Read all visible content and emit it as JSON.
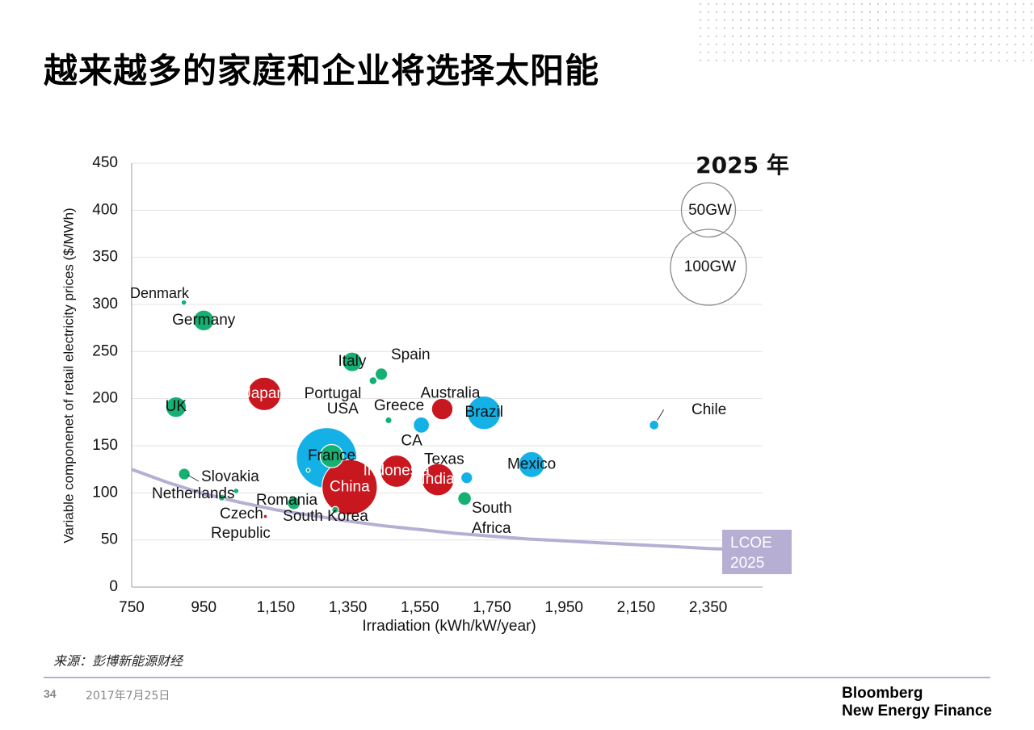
{
  "page": {
    "title": "越来越多的家庭和企业将选择太阳能",
    "source": "来源：彭博新能源财经",
    "page_number": "34",
    "date": "2017年7月25日",
    "brand_line1": "Bloomberg",
    "brand_line2": "New Energy Finance"
  },
  "colors": {
    "green": "#15b172",
    "red": "#c8171e",
    "blue": "#14b1e7",
    "lcoe": "#b7aed4"
  },
  "chart_data": {
    "type": "bubble",
    "title": "2025 年",
    "xlabel": "Irradiation (kWh/kW/year)",
    "ylabel": "Variable componenet of retail electricity prices ($/MWh)",
    "xlim": [
      750,
      2550
    ],
    "ylim": [
      0,
      450
    ],
    "xticks": [
      750,
      950,
      1150,
      1350,
      1550,
      1750,
      1950,
      2150,
      2350
    ],
    "xtick_labels": [
      "750",
      "950",
      "1,150",
      "1,350",
      "1,550",
      "1,750",
      "1,950",
      "2,150",
      "2,350"
    ],
    "yticks": [
      0,
      50,
      100,
      150,
      200,
      250,
      300,
      350,
      400,
      450
    ],
    "ytick_labels": [
      "0",
      "50",
      "100",
      "150",
      "200",
      "250",
      "300",
      "350",
      "400",
      "450"
    ],
    "grid": true,
    "size_legend": [
      {
        "label": "50GW",
        "gw": 50
      },
      {
        "label": "100GW",
        "gw": 100
      }
    ],
    "lcoe": {
      "label_line1": "LCOE",
      "label_line2": "2025",
      "x": [
        750,
        850,
        950,
        1050,
        1150,
        1250,
        1350,
        1450,
        1550,
        1650,
        1750,
        1850,
        1950,
        2050,
        2150,
        2250,
        2350,
        2450,
        2500
      ],
      "y": [
        125,
        111,
        99,
        90,
        82,
        76,
        70,
        65,
        61,
        57,
        54,
        51,
        49,
        47,
        45,
        43,
        41,
        39.5,
        38.5
      ]
    },
    "points": [
      {
        "name": "USA",
        "label": "USA",
        "x": 1291,
        "y": 137,
        "gw": 240,
        "color": "blue",
        "label_pos": "inside-top"
      },
      {
        "name": "Brazil",
        "label": "Brazil",
        "x": 1728,
        "y": 185,
        "gw": 74,
        "color": "blue",
        "label_pos": "inside"
      },
      {
        "name": "Mexico",
        "label": "Mexico",
        "x": 1860,
        "y": 130,
        "gw": 44,
        "color": "blue",
        "label_pos": "inside"
      },
      {
        "name": "CA",
        "label": "CA",
        "x": 1554,
        "y": 172,
        "gw": 17,
        "color": "blue",
        "label_pos": "below"
      },
      {
        "name": "Texas",
        "label": "Texas",
        "x": 1680,
        "y": 116,
        "gw": 9,
        "color": "blue",
        "label_pos": "above-left"
      },
      {
        "name": "Chile",
        "label": "Chile",
        "x": 2200,
        "y": 172,
        "gw": 6,
        "color": "blue",
        "label_pos": "right-far"
      },
      {
        "name": "China",
        "label": "China",
        "x": 1355,
        "y": 106,
        "gw": 200,
        "color": "red",
        "label_pos": "inside"
      },
      {
        "name": "Japan",
        "label": "Japan",
        "x": 1118,
        "y": 205,
        "gw": 73,
        "color": "red",
        "label_pos": "inside"
      },
      {
        "name": "Indonesia",
        "label": "Indonesia",
        "x": 1485,
        "y": 123,
        "gw": 68,
        "color": "red",
        "label_pos": "inside"
      },
      {
        "name": "India",
        "label": "India",
        "x": 1600,
        "y": 114,
        "gw": 68,
        "color": "red",
        "label_pos": "inside"
      },
      {
        "name": "Australia",
        "label": "Australia",
        "x": 1612,
        "y": 189,
        "gw": 30,
        "color": "red",
        "label_pos": "above-inside"
      },
      {
        "name": "Czech Republic",
        "label": "Czech",
        "label2": "Republic",
        "x": 1121,
        "y": 75,
        "gw": 1,
        "color": "red",
        "label_pos": "czech"
      },
      {
        "name": "Germany",
        "label": "Germany",
        "x": 950,
        "y": 283,
        "gw": 28,
        "color": "green",
        "label_pos": "inside"
      },
      {
        "name": "UK",
        "label": "UK",
        "x": 873,
        "y": 191,
        "gw": 28,
        "color": "green",
        "label_pos": "inside"
      },
      {
        "name": "Italy",
        "label": "Italy",
        "x": 1362,
        "y": 239,
        "gw": 25,
        "color": "green",
        "label_pos": "inside"
      },
      {
        "name": "France",
        "label": "France",
        "x": 1305,
        "y": 139,
        "gw": 35,
        "color": "green",
        "label_pos": "inside"
      },
      {
        "name": "Spain",
        "label": "Spain",
        "x": 1443,
        "y": 226,
        "gw": 10,
        "color": "green",
        "label_pos": "spain"
      },
      {
        "name": "Portugal",
        "label": "Portugal",
        "x": 1420,
        "y": 219,
        "gw": 4,
        "color": "green",
        "label_pos": "portugal"
      },
      {
        "name": "Greece",
        "label": "Greece",
        "x": 1463,
        "y": 177,
        "gw": 3,
        "color": "green",
        "label_pos": "greece"
      },
      {
        "name": "Denmark",
        "label": "Denmark",
        "x": 895,
        "y": 302,
        "gw": 2,
        "color": "green",
        "label_pos": "denmark"
      },
      {
        "name": "Slovakia",
        "label": "Slovakia",
        "x": 896,
        "y": 120,
        "gw": 9,
        "color": "green",
        "label_pos": "slovakia"
      },
      {
        "name": "Netherlands",
        "label": "Netherlands",
        "x": 1040,
        "y": 102,
        "gw": 2,
        "color": "green",
        "label_pos": "netherlands"
      },
      {
        "name": "Romania",
        "label": "Romania",
        "x": 1200,
        "y": 89,
        "gw": 11,
        "color": "green",
        "label_pos": "romania"
      },
      {
        "name": "South Korea",
        "label": "South Korea",
        "x": 1315,
        "y": 82,
        "gw": 3,
        "color": "green",
        "label_pos": "southkorea"
      },
      {
        "name": "South Africa",
        "label": "South",
        "label2": "Africa",
        "x": 1674,
        "y": 94,
        "gw": 12,
        "color": "green",
        "label_pos": "southafrica"
      },
      {
        "name": "Small1",
        "label": "",
        "x": 1000,
        "y": 95,
        "gw": 3,
        "color": "green",
        "label_pos": "none"
      },
      {
        "name": "Small2",
        "label": "",
        "x": 1240,
        "y": 124,
        "gw": 1,
        "color": "green",
        "label_pos": "none"
      }
    ]
  }
}
